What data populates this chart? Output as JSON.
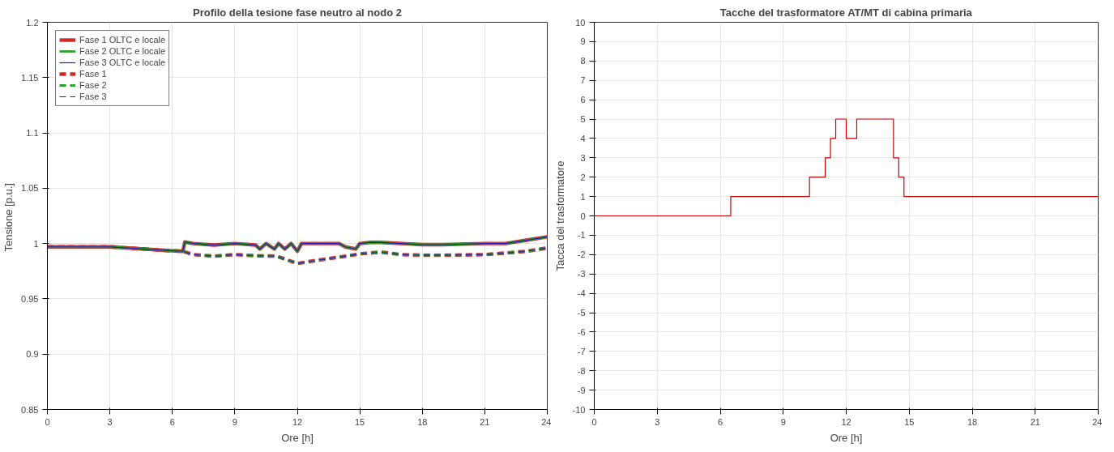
{
  "chart_data": [
    {
      "type": "line",
      "title": "Profilo della tesione fase neutro al nodo 2",
      "xlabel": "Ore [h]",
      "ylabel": "Tensione  [p.u.]",
      "xlim": [
        0,
        24
      ],
      "ylim": [
        0.85,
        1.2
      ],
      "xticks": [
        0,
        3,
        6,
        9,
        12,
        15,
        18,
        21,
        24
      ],
      "yticks": [
        0.85,
        0.9,
        0.95,
        1,
        1.05,
        1.1,
        1.15,
        1.2
      ],
      "grid": true,
      "legend": "top left",
      "x": [
        0,
        3,
        6,
        6.5,
        6.6,
        7,
        8,
        9,
        10,
        10.2,
        10.5,
        10.9,
        11.1,
        11.4,
        11.7,
        12,
        12.2,
        13,
        14,
        14.3,
        14.8,
        15,
        15.5,
        16,
        18,
        19,
        21,
        22,
        23,
        24
      ],
      "series": [
        {
          "name": "Fase 1 OLTC e locale",
          "color": "#d62728",
          "line_style": "solid",
          "values": [
            0.997,
            0.997,
            0.9934,
            0.993,
            1.0014,
            1.0,
            0.9986,
            1.0,
            0.9986,
            0.995,
            1.0,
            0.995,
            1.0,
            0.995,
            1.0,
            0.993,
            1.0,
            1.0,
            1.0,
            0.997,
            0.995,
            1.0,
            1.001,
            1.001,
            0.999,
            0.999,
            1.0,
            1.0,
            1.003,
            1.006
          ]
        },
        {
          "name": "Fase 2 OLTC e locale",
          "color": "#2ca02c",
          "line_style": "solid",
          "values": [
            0.997,
            0.997,
            0.9934,
            0.993,
            1.0014,
            1.0,
            0.9986,
            1.0,
            0.9986,
            0.995,
            1.0,
            0.995,
            1.0,
            0.995,
            1.0,
            0.993,
            1.0,
            1.0,
            1.0,
            0.997,
            0.995,
            1.0,
            1.001,
            1.001,
            0.999,
            0.999,
            1.0,
            1.0,
            1.003,
            1.006
          ]
        },
        {
          "name": "Fase 3 OLTC e locale",
          "color": "#1f1fb4",
          "line_style": "solid",
          "values": [
            0.997,
            0.997,
            0.9934,
            0.993,
            1.0014,
            1.0,
            0.9986,
            1.0,
            0.9986,
            0.995,
            1.0,
            0.995,
            1.0,
            0.995,
            1.0,
            0.993,
            1.0,
            1.0,
            1.0,
            0.997,
            0.995,
            1.0,
            1.001,
            1.001,
            0.999,
            0.999,
            1.0,
            1.0,
            1.003,
            1.006
          ]
        },
        {
          "name": "Fase 1",
          "color": "#d62728",
          "line_style": "dashed",
          "x": [
            0,
            3,
            6,
            6.5,
            7,
            8,
            9,
            10,
            11,
            12,
            13,
            14,
            15,
            16,
            17,
            18,
            19,
            21,
            22,
            23,
            24
          ],
          "values": [
            0.997,
            0.997,
            0.9934,
            0.993,
            0.99,
            0.9886,
            0.99,
            0.989,
            0.9886,
            0.982,
            0.985,
            0.9877,
            0.9906,
            0.9923,
            0.99,
            0.9894,
            0.9894,
            0.99,
            0.9914,
            0.993,
            0.996
          ]
        },
        {
          "name": "Fase 2",
          "color": "#2ca02c",
          "line_style": "dashed",
          "x": [
            0,
            3,
            6,
            6.5,
            7,
            8,
            9,
            10,
            11,
            12,
            13,
            14,
            15,
            16,
            17,
            18,
            19,
            21,
            22,
            23,
            24
          ],
          "values": [
            0.997,
            0.997,
            0.9934,
            0.993,
            0.99,
            0.9886,
            0.99,
            0.989,
            0.9886,
            0.982,
            0.985,
            0.9877,
            0.9906,
            0.9923,
            0.99,
            0.9894,
            0.9894,
            0.99,
            0.9914,
            0.993,
            0.996
          ]
        },
        {
          "name": "Fase 3",
          "color": "#1f1fb4",
          "line_style": "dashed",
          "x": [
            0,
            3,
            6,
            6.5,
            7,
            8,
            9,
            10,
            11,
            12,
            13,
            14,
            15,
            16,
            17,
            18,
            19,
            21,
            22,
            23,
            24
          ],
          "values": [
            0.997,
            0.997,
            0.9934,
            0.993,
            0.99,
            0.9886,
            0.99,
            0.989,
            0.9886,
            0.982,
            0.985,
            0.9877,
            0.9906,
            0.9923,
            0.99,
            0.9894,
            0.9894,
            0.99,
            0.9914,
            0.993,
            0.996
          ]
        }
      ]
    },
    {
      "type": "step",
      "title": "Tacche del trasformatore AT/MT di cabina primaria",
      "xlabel": "Ore [h]",
      "ylabel": "Tacca del trasformatore",
      "xlim": [
        0,
        24
      ],
      "ylim": [
        -10,
        10
      ],
      "xticks": [
        0,
        3,
        6,
        9,
        12,
        15,
        18,
        21,
        24
      ],
      "yticks": [
        -10,
        -9,
        -8,
        -7,
        -6,
        -5,
        -4,
        -3,
        -2,
        -1,
        0,
        1,
        2,
        3,
        4,
        5,
        6,
        7,
        8,
        9,
        10
      ],
      "grid": true,
      "x": [
        0,
        6.5,
        10.25,
        11,
        11.25,
        11.5,
        12,
        12.5,
        14.25,
        14.5,
        14.75,
        24
      ],
      "series": [
        {
          "color": "#cc0000",
          "values": [
            0,
            1,
            2,
            3,
            4,
            5,
            4,
            5,
            3,
            2,
            1,
            1
          ]
        }
      ]
    }
  ]
}
